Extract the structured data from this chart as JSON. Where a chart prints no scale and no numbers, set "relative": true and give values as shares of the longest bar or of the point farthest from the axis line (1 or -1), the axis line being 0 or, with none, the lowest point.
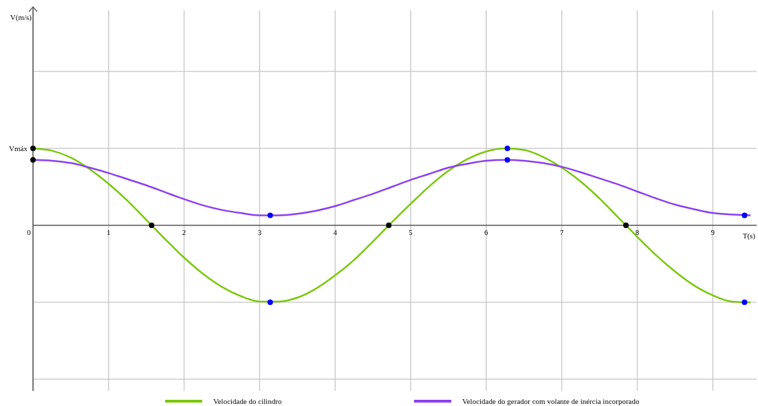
{
  "chart_data": {
    "type": "line",
    "xlabel": "T(s)",
    "xlim": [
      0,
      9.58
    ],
    "xticks": [
      0,
      1,
      2,
      3,
      4,
      5,
      6,
      7,
      8,
      9
    ],
    "relative": true,
    "annotations": [
      "V(m/s)",
      "Vmáx"
    ],
    "grid": true,
    "legend": "bottom",
    "marker": "none",
    "line_style": "solid",
    "series": [
      {
        "name": "Velocidade do cilindro",
        "color": "#7ac70c",
        "x": [
          0,
          0.25,
          0.5,
          0.75,
          1,
          1.25,
          1.5,
          1.75,
          2,
          2.25,
          2.5,
          2.75,
          3,
          3.25,
          3.5,
          3.75,
          4,
          4.25,
          4.5,
          4.75,
          5,
          5.25,
          5.5,
          5.75,
          6,
          6.25,
          6.5,
          6.75,
          7,
          7.25,
          7.5,
          7.75,
          8,
          8.25,
          8.5,
          8.75,
          9,
          9.25,
          9.5
        ],
        "values": [
          1,
          0.97,
          0.88,
          0.73,
          0.54,
          0.32,
          0.07,
          -0.18,
          -0.42,
          -0.63,
          -0.8,
          -0.92,
          -0.99,
          -0.99,
          -0.94,
          -0.82,
          -0.65,
          -0.45,
          -0.21,
          0.04,
          0.28,
          0.51,
          0.71,
          0.86,
          0.96,
          1,
          0.98,
          0.89,
          0.75,
          0.57,
          0.35,
          0.1,
          -0.15,
          -0.39,
          -0.6,
          -0.78,
          -0.91,
          -0.99,
          -1
        ]
      },
      {
        "name": "Velocidade do gerador com volante de inércia incorporado",
        "color": "#8b3ff0",
        "x": [
          0,
          0.25,
          0.5,
          0.75,
          1,
          1.25,
          1.5,
          1.75,
          2,
          2.25,
          2.5,
          2.75,
          3,
          3.25,
          3.5,
          3.75,
          4,
          4.25,
          4.5,
          4.75,
          5,
          5.25,
          5.5,
          5.75,
          6,
          6.25,
          6.5,
          6.75,
          7,
          7.25,
          7.5,
          7.75,
          8,
          8.25,
          8.5,
          8.75,
          9,
          9.25,
          9.5
        ],
        "values": [
          0.85,
          0.84,
          0.81,
          0.75,
          0.68,
          0.6,
          0.52,
          0.43,
          0.34,
          0.26,
          0.2,
          0.16,
          0.13,
          0.13,
          0.15,
          0.19,
          0.25,
          0.33,
          0.41,
          0.5,
          0.59,
          0.67,
          0.75,
          0.8,
          0.84,
          0.85,
          0.84,
          0.81,
          0.76,
          0.69,
          0.61,
          0.53,
          0.44,
          0.35,
          0.27,
          0.21,
          0.16,
          0.14,
          0.13
        ]
      },
      {
        "type": "scatter",
        "marker": "circle",
        "color": "#000000",
        "x": [
          0,
          0,
          1.57,
          4.71,
          7.85
        ],
        "values": [
          1,
          0.85,
          0,
          0,
          0
        ]
      },
      {
        "type": "scatter",
        "marker": "circle",
        "color": "#0000ff",
        "x": [
          3.14,
          3.14,
          6.28,
          6.28,
          9.42,
          9.42
        ],
        "values": [
          -1,
          0.13,
          1,
          0.85,
          -1,
          0.13
        ]
      }
    ]
  }
}
